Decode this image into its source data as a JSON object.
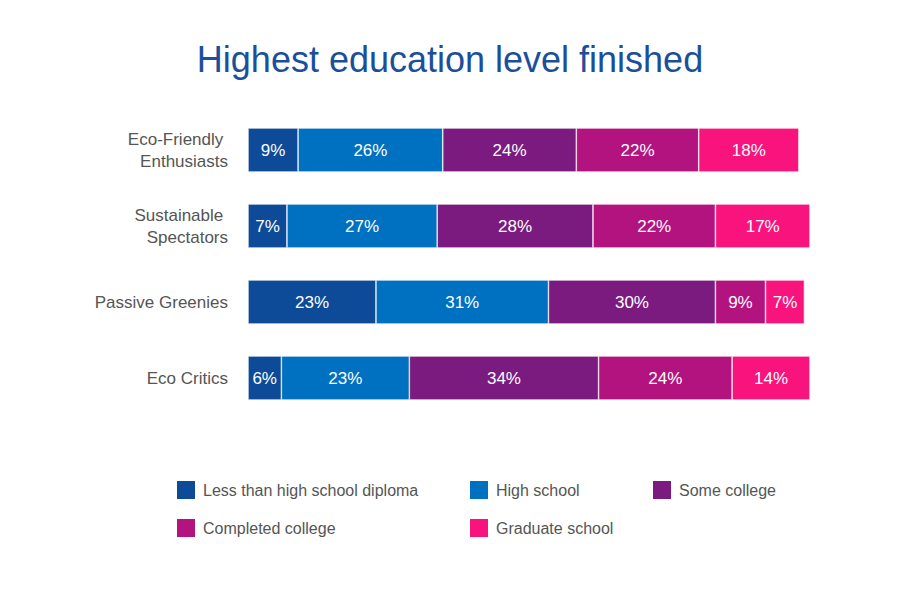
{
  "chart_data": {
    "type": "bar",
    "title": "Highest education level finished",
    "orientation": "horizontal",
    "stacked": true,
    "data_labels": true,
    "tick_labels": "y",
    "grid": false,
    "legend": "bottom",
    "categories": [
      "Eco-Friendly Enthusiasts",
      "Sustainable Spectators",
      "Passive Greenies",
      "Eco Critics"
    ],
    "xlim": [
      0,
      101
    ],
    "xticks": [
      0,
      101
    ],
    "series": [
      {
        "name": "Less than high school diploma",
        "color": "#0d4a98",
        "values": [
          9,
          7,
          23,
          6
        ],
        "value_labels": [
          "9%",
          "7%",
          "23%",
          "6%"
        ]
      },
      {
        "name": "High school",
        "color": "#0070c0",
        "values": [
          26,
          27,
          31,
          23
        ],
        "value_labels": [
          "26%",
          "27%",
          "31%",
          "23%"
        ]
      },
      {
        "name": "Some college",
        "color": "#7b1a7f",
        "values": [
          24,
          28,
          30,
          34
        ],
        "value_labels": [
          "24%",
          "28%",
          "30%",
          "34%"
        ]
      },
      {
        "name": "Completed college",
        "color": "#b3137f",
        "values": [
          22,
          22,
          9,
          24
        ],
        "value_labels": [
          "22%",
          "22%",
          "9%",
          "24%"
        ]
      },
      {
        "name": "Graduate school",
        "color": "#f8137d",
        "values": [
          18,
          17,
          7,
          14
        ],
        "value_labels": [
          "18%",
          "17%",
          "7%",
          "14%"
        ]
      }
    ]
  }
}
